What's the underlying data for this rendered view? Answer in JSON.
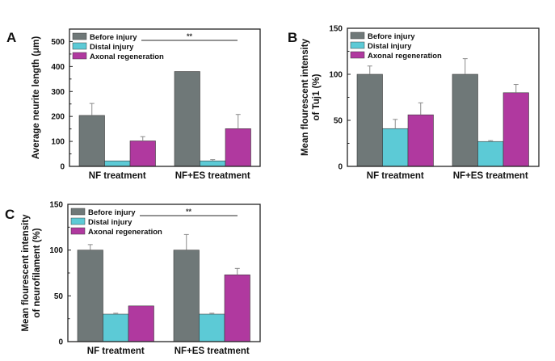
{
  "colors": {
    "before": "#6f7878",
    "distal": "#5ccad6",
    "axonal": "#b0399f",
    "frame": "#222222",
    "error": "#8a8a8a",
    "sig_line": "#555555"
  },
  "chart_data": [
    {
      "panel": "A",
      "type": "bar",
      "title": "",
      "xlabel": "",
      "ylabel": "Average neurite length (μm)",
      "ylim": [
        0,
        550
      ],
      "yticks": [
        0,
        100,
        200,
        300,
        400,
        500
      ],
      "minor_ticks": [
        50,
        150,
        250,
        350,
        450
      ],
      "categories": [
        "NF treatment",
        "NF+ES treatment"
      ],
      "legend_position": "top-left",
      "series": [
        {
          "name": "Before injury",
          "color_key": "before",
          "values": [
            204,
            380
          ],
          "errors": [
            48,
            0
          ]
        },
        {
          "name": "Distal injury",
          "color_key": "distal",
          "values": [
            22,
            22
          ],
          "errors": [
            0,
            5
          ]
        },
        {
          "name": "Axonal regeneration",
          "color_key": "axonal",
          "values": [
            102,
            151
          ],
          "errors": [
            17,
            57
          ]
        }
      ],
      "significance": {
        "label": "**",
        "from_category": 0,
        "to_category": 1
      }
    },
    {
      "panel": "B",
      "type": "bar",
      "title": "",
      "xlabel": "",
      "ylabel": "Mean flourescent intensity\nof Tuj1 (%)",
      "ylim": [
        0,
        150
      ],
      "yticks": [
        0,
        50,
        100,
        150
      ],
      "minor_ticks": [
        25,
        75,
        125
      ],
      "categories": [
        "NF treatment",
        "NF+ES treatment"
      ],
      "legend_position": "top-left",
      "series": [
        {
          "name": "Before injury",
          "color_key": "before",
          "values": [
            100,
            100
          ],
          "errors": [
            9,
            17
          ]
        },
        {
          "name": "Distal injury",
          "color_key": "distal",
          "values": [
            41,
            27
          ],
          "errors": [
            10,
            1
          ]
        },
        {
          "name": "Axonal regeneration",
          "color_key": "axonal",
          "values": [
            56,
            80
          ],
          "errors": [
            13,
            9
          ]
        }
      ],
      "significance": null
    },
    {
      "panel": "C",
      "type": "bar",
      "title": "",
      "xlabel": "",
      "ylabel": "Mean flourescent intensity\nof neurofilament  (%)",
      "ylim": [
        0,
        150
      ],
      "yticks": [
        0,
        50,
        100,
        150
      ],
      "minor_ticks": [
        25,
        75,
        125
      ],
      "categories": [
        "NF treatment",
        "NF+ES treatment"
      ],
      "legend_position": "top-left",
      "series": [
        {
          "name": "Before injury",
          "color_key": "before",
          "values": [
            100,
            100
          ],
          "errors": [
            6,
            17
          ]
        },
        {
          "name": "Distal injury",
          "color_key": "distal",
          "values": [
            30,
            30
          ],
          "errors": [
            1,
            1
          ]
        },
        {
          "name": "Axonal regeneration",
          "color_key": "axonal",
          "values": [
            39,
            73
          ],
          "errors": [
            0,
            7
          ]
        }
      ],
      "significance": {
        "label": "**",
        "from_category": 0,
        "to_category": 1
      }
    }
  ]
}
